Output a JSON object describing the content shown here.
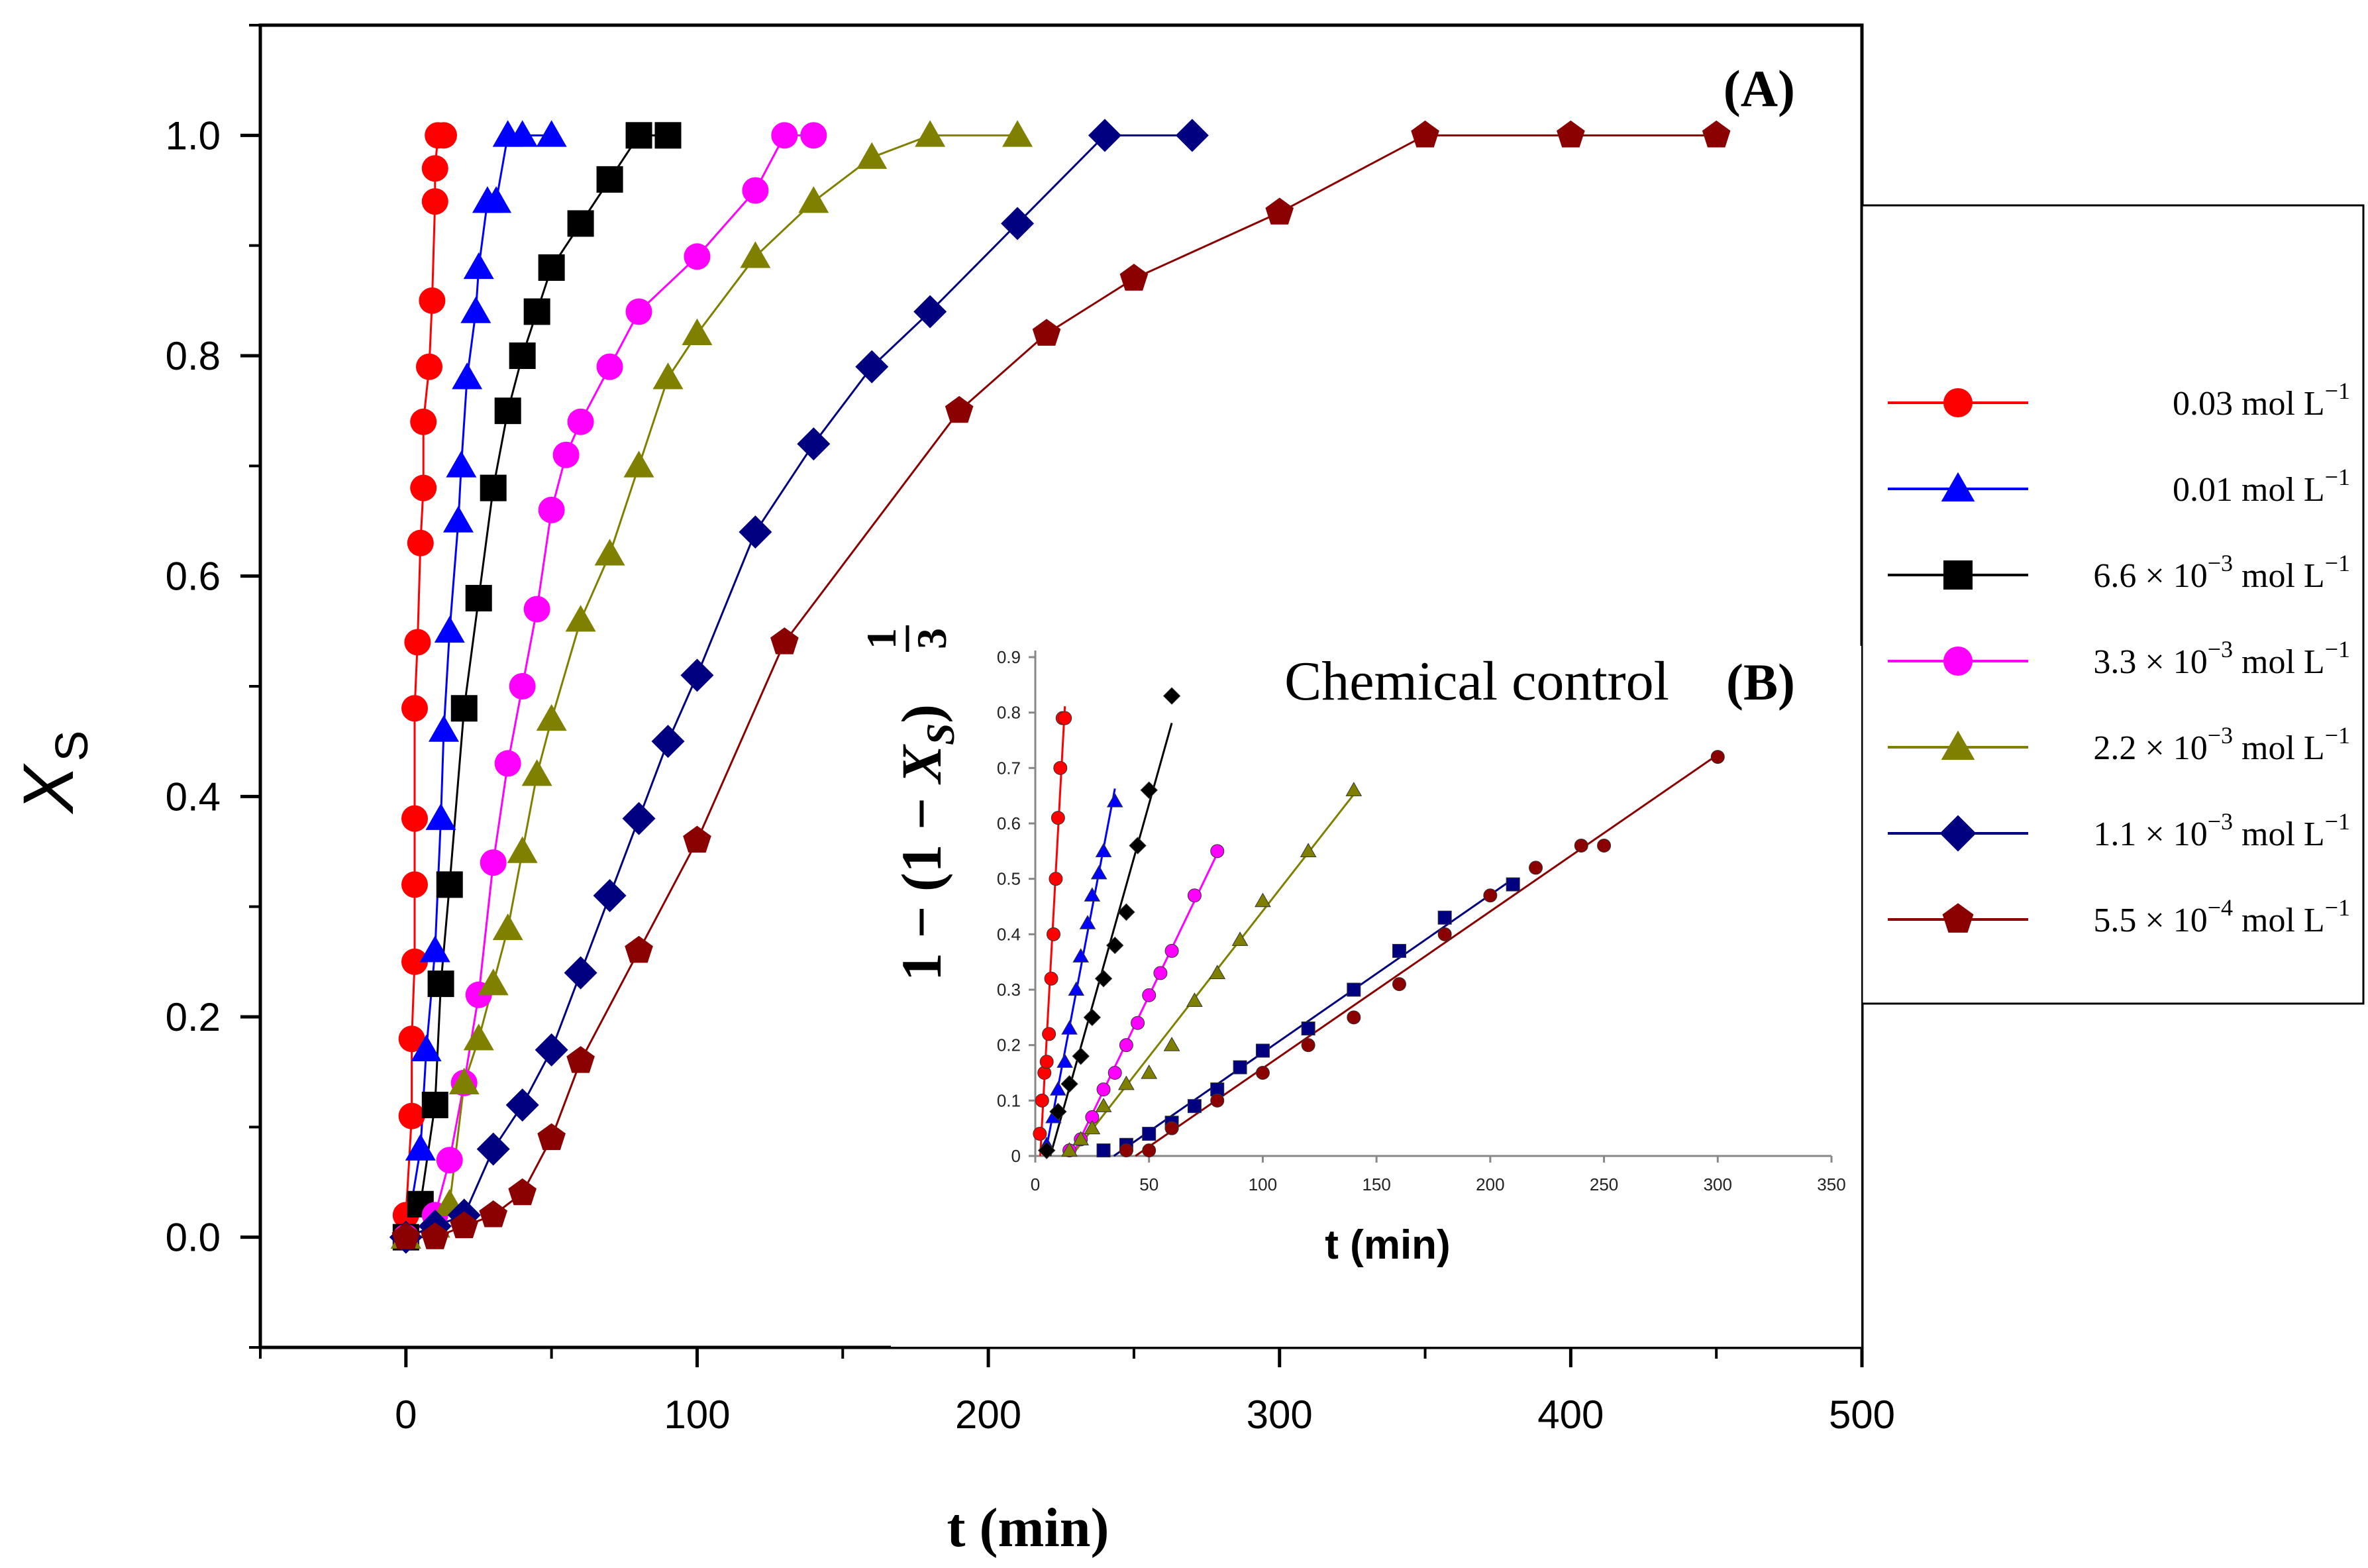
{
  "chart_data": [
    {
      "type": "line",
      "panel_label": "(A)",
      "xlabel": "t (min)",
      "ylabel": "X",
      "ylabel_sub": "S",
      "xlim": [
        -50,
        500
      ],
      "ylim": [
        -0.1,
        1.1
      ],
      "xticks": [
        0,
        100,
        200,
        300,
        400,
        500
      ],
      "yticks": [
        0.0,
        0.2,
        0.4,
        0.6,
        0.8,
        1.0
      ],
      "xtick_labels": [
        "0",
        "100",
        "200",
        "300",
        "400",
        "500"
      ],
      "ytick_labels": [
        "0.0",
        "0.2",
        "0.4",
        "0.6",
        "0.8",
        "1.0"
      ],
      "legend": {
        "position": "right",
        "entries": [
          {
            "mantissa": "0.03",
            "exponent": "",
            "unit": "mol L",
            "unit_exp": "−1"
          },
          {
            "mantissa": "0.01",
            "exponent": "",
            "unit": "mol L",
            "unit_exp": "−1"
          },
          {
            "mantissa": "6.6 × 10",
            "exponent": "−3",
            "unit": "mol L",
            "unit_exp": "−1"
          },
          {
            "mantissa": "3.3 × 10",
            "exponent": "−3",
            "unit": "mol L",
            "unit_exp": "−1"
          },
          {
            "mantissa": "2.2 × 10",
            "exponent": "−3",
            "unit": "mol L",
            "unit_exp": "−1"
          },
          {
            "mantissa": "1.1 × 10",
            "exponent": "−3",
            "unit": "mol L",
            "unit_exp": "−1"
          },
          {
            "mantissa": "5.5 × 10",
            "exponent": "−4",
            "unit": "mol L",
            "unit_exp": "−1"
          }
        ]
      },
      "series": [
        {
          "name": "0.03 mol L−1",
          "color": "#ff0000",
          "marker": "circle",
          "x": [
            0,
            0,
            2,
            2,
            3,
            3,
            3,
            3,
            4,
            5,
            6,
            6,
            8,
            9,
            10,
            10,
            11,
            13
          ],
          "y": [
            0,
            0.02,
            0.11,
            0.18,
            0.25,
            0.32,
            0.38,
            0.48,
            0.54,
            0.63,
            0.68,
            0.74,
            0.79,
            0.85,
            0.94,
            0.97,
            1.0,
            1.0
          ]
        },
        {
          "name": "0.01 mol L−1",
          "color": "#0000ff",
          "marker": "triangle",
          "x": [
            0,
            5,
            7,
            10,
            12,
            13,
            15,
            18,
            19,
            21,
            24,
            25,
            28,
            31,
            35,
            40,
            50
          ],
          "y": [
            0,
            0.08,
            0.17,
            0.26,
            0.38,
            0.46,
            0.55,
            0.65,
            0.7,
            0.78,
            0.84,
            0.88,
            0.94,
            0.94,
            1.0,
            1.0,
            1.0
          ]
        },
        {
          "name": "6.6 × 10−3 mol L−1",
          "color": "#000000",
          "marker": "square",
          "x": [
            0,
            5,
            10,
            12,
            15,
            20,
            25,
            30,
            35,
            40,
            45,
            50,
            60,
            70,
            80,
            90
          ],
          "y": [
            0,
            0.03,
            0.12,
            0.23,
            0.32,
            0.48,
            0.58,
            0.68,
            0.75,
            0.8,
            0.84,
            0.88,
            0.92,
            0.96,
            1.0,
            1.0
          ]
        },
        {
          "name": "3.3 × 10−3 mol L−1",
          "color": "#ff00ff",
          "marker": "circle",
          "x": [
            0,
            10,
            15,
            20,
            25,
            30,
            35,
            40,
            45,
            50,
            55,
            60,
            70,
            80,
            100,
            120,
            130,
            140
          ],
          "y": [
            0,
            0.02,
            0.07,
            0.14,
            0.22,
            0.34,
            0.43,
            0.5,
            0.57,
            0.66,
            0.71,
            0.74,
            0.79,
            0.84,
            0.89,
            0.95,
            1.0,
            1.0
          ]
        },
        {
          "name": "2.2 × 10−3 mol L−1",
          "color": "#808000",
          "marker": "triangle",
          "x": [
            0,
            10,
            15,
            20,
            25,
            30,
            35,
            40,
            45,
            50,
            60,
            70,
            80,
            90,
            100,
            120,
            140,
            160,
            180,
            210
          ],
          "y": [
            0,
            0.01,
            0.03,
            0.14,
            0.18,
            0.23,
            0.28,
            0.35,
            0.42,
            0.47,
            0.56,
            0.62,
            0.7,
            0.78,
            0.82,
            0.89,
            0.94,
            0.98,
            1.0,
            1.0
          ]
        },
        {
          "name": "1.1 × 10−3 mol L−1",
          "color": "#000080",
          "marker": "diamond",
          "x": [
            0,
            10,
            20,
            30,
            40,
            50,
            60,
            70,
            80,
            90,
            100,
            120,
            140,
            160,
            180,
            210,
            240,
            270
          ],
          "y": [
            0,
            0.01,
            0.02,
            0.08,
            0.12,
            0.17,
            0.24,
            0.31,
            0.38,
            0.45,
            0.51,
            0.64,
            0.72,
            0.79,
            0.84,
            0.92,
            1.0,
            1.0
          ]
        },
        {
          "name": "5.5 × 10−4 mol L−1",
          "color": "#8b0000",
          "marker": "pentagon",
          "x": [
            0,
            10,
            20,
            30,
            40,
            50,
            60,
            80,
            100,
            130,
            190,
            220,
            250,
            300,
            350,
            400,
            450
          ],
          "y": [
            0,
            0,
            0.01,
            0.02,
            0.04,
            0.09,
            0.16,
            0.26,
            0.36,
            0.54,
            0.75,
            0.82,
            0.87,
            0.93,
            1.0,
            1.0,
            1.0
          ]
        }
      ]
    },
    {
      "type": "scatter",
      "panel_label": "(B)",
      "title": "Chemical  control",
      "xlabel": "t (min)",
      "ylabel": "1 − (1 − X_S)^(1/3)",
      "ylabel_parts": {
        "lead": "1 − (1 − ",
        "var": "X",
        "sub": "S",
        "close": ")",
        "frac_num": "1",
        "frac_den": "3"
      },
      "xlim": [
        0,
        350
      ],
      "ylim": [
        0,
        0.9
      ],
      "xticks": [
        0,
        50,
        100,
        150,
        200,
        250,
        300,
        350
      ],
      "yticks": [
        0,
        0.1,
        0.2,
        0.3,
        0.4,
        0.5,
        0.6,
        0.7,
        0.8,
        0.9
      ],
      "xtick_labels": [
        "0",
        "50",
        "100",
        "150",
        "200",
        "250",
        "300",
        "350"
      ],
      "ytick_labels": [
        "0",
        "0.1",
        "0.2",
        "0.3",
        "0.4",
        "0.5",
        "0.6",
        "0.7",
        "0.8",
        "0.9"
      ],
      "series": [
        {
          "name": "0.03 mol L−1",
          "color": "#ff0000",
          "marker": "circle",
          "x": [
            2,
            3,
            4,
            5,
            6,
            7,
            8,
            9,
            10,
            11,
            12,
            13
          ],
          "y": [
            0.04,
            0.1,
            0.15,
            0.17,
            0.22,
            0.32,
            0.4,
            0.5,
            0.61,
            0.7,
            0.79,
            0.79
          ]
        },
        {
          "name": "0.01 mol L−1",
          "color": "#0000ff",
          "marker": "triangle",
          "x": [
            5,
            8,
            10,
            13,
            15,
            18,
            20,
            23,
            25,
            28,
            30,
            35
          ],
          "y": [
            0.02,
            0.07,
            0.12,
            0.17,
            0.23,
            0.3,
            0.36,
            0.42,
            0.47,
            0.51,
            0.55,
            0.64
          ]
        },
        {
          "name": "6.6 × 10−3 mol L−1",
          "color": "#000000",
          "marker": "diamond",
          "x": [
            5,
            10,
            15,
            20,
            25,
            30,
            35,
            40,
            45,
            50,
            60
          ],
          "y": [
            0.01,
            0.08,
            0.13,
            0.18,
            0.25,
            0.32,
            0.38,
            0.44,
            0.56,
            0.66,
            0.83
          ]
        },
        {
          "name": "3.3 × 10−3 mol L−1",
          "color": "#ff00ff",
          "marker": "circle",
          "x": [
            15,
            20,
            25,
            30,
            35,
            40,
            45,
            50,
            55,
            60,
            70,
            80
          ],
          "y": [
            0.01,
            0.03,
            0.07,
            0.12,
            0.15,
            0.2,
            0.24,
            0.29,
            0.33,
            0.37,
            0.47,
            0.55
          ]
        },
        {
          "name": "2.2 × 10−3 mol L−1",
          "color": "#808000",
          "marker": "triangle",
          "x": [
            15,
            20,
            25,
            30,
            40,
            50,
            60,
            70,
            80,
            90,
            100,
            120,
            140
          ],
          "y": [
            0.01,
            0.03,
            0.05,
            0.09,
            0.13,
            0.15,
            0.2,
            0.28,
            0.33,
            0.39,
            0.46,
            0.55,
            0.66
          ]
        },
        {
          "name": "1.1 × 10−3 mol L−1",
          "color": "#000080",
          "marker": "square",
          "x": [
            30,
            40,
            50,
            60,
            70,
            80,
            90,
            100,
            120,
            140,
            160,
            180,
            210
          ],
          "y": [
            0.01,
            0.02,
            0.04,
            0.06,
            0.09,
            0.12,
            0.16,
            0.19,
            0.23,
            0.3,
            0.37,
            0.43,
            0.49
          ]
        },
        {
          "name": "5.5 × 10−4 mol L−1",
          "color": "#8b0000",
          "marker": "circle",
          "x": [
            40,
            50,
            60,
            80,
            100,
            120,
            140,
            160,
            180,
            200,
            220,
            240,
            250,
            300
          ],
          "y": [
            0.01,
            0.01,
            0.05,
            0.1,
            0.15,
            0.2,
            0.25,
            0.31,
            0.4,
            0.47,
            0.52,
            0.56,
            0.56,
            0.72
          ]
        }
      ]
    }
  ]
}
